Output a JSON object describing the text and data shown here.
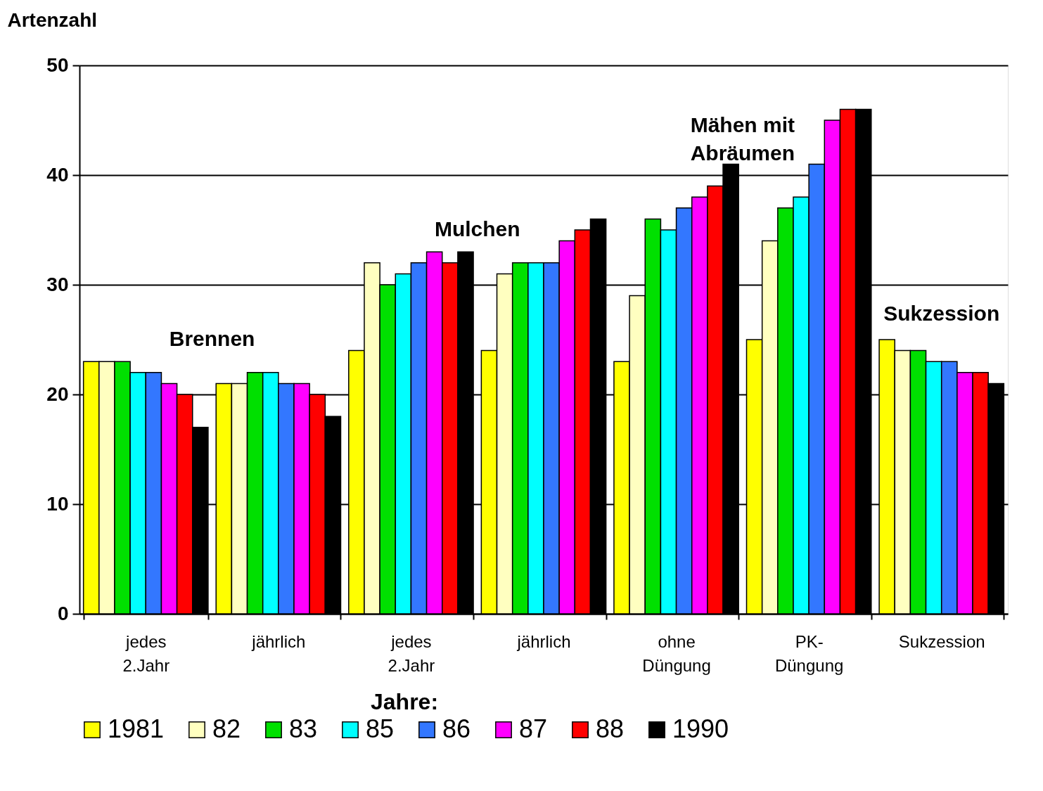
{
  "chart_data": {
    "type": "bar",
    "ylabel": "Artenzahl",
    "legend_title": "Jahre:",
    "legend": "bottom",
    "grid": "y",
    "categories": [
      "jedes\n2.Jahr",
      "jährlich",
      "jedes\n2.Jahr",
      "jährlich",
      "ohne\nDüngung",
      "PK-\nDüngung",
      "Sukzession"
    ],
    "ylim": [
      0,
      50
    ],
    "yticks": [
      0,
      10,
      20,
      30,
      40,
      50
    ],
    "annotations": [
      "Brennen",
      "Mulchen",
      "Mähen mit\nAbräumen",
      "Sukzession"
    ],
    "series": [
      {
        "name": "1981",
        "color": "#ffff00",
        "values": [
          23,
          21,
          24,
          24,
          23,
          25,
          25
        ]
      },
      {
        "name": "82",
        "color": "#ffffc0",
        "values": [
          23,
          21,
          32,
          31,
          29,
          34,
          24
        ]
      },
      {
        "name": "83",
        "color": "#00e000",
        "values": [
          23,
          22,
          30,
          32,
          36,
          37,
          24
        ]
      },
      {
        "name": "85",
        "color": "#00ffff",
        "values": [
          22,
          22,
          31,
          32,
          35,
          38,
          23
        ]
      },
      {
        "name": "86",
        "color": "#3377ff",
        "values": [
          22,
          21,
          32,
          32,
          37,
          41,
          23
        ]
      },
      {
        "name": "87",
        "color": "#ff00ff",
        "values": [
          21,
          21,
          33,
          34,
          38,
          45,
          22
        ]
      },
      {
        "name": "88",
        "color": "#ff0000",
        "values": [
          20,
          20,
          32,
          35,
          39,
          46,
          22
        ]
      },
      {
        "name": "1990",
        "color": "#000000",
        "values": [
          17,
          18,
          33,
          36,
          41,
          46,
          21
        ]
      }
    ]
  }
}
